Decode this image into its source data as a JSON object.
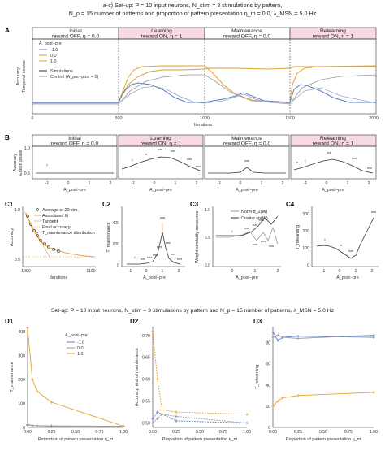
{
  "header_top": {
    "line1": "a-c) Set-up: P = 10 input neurons, N_stim = 3 stimulations by pattern,",
    "line2": "N_p = 15 number of patterns and proportion of pattern presentation η_m = 0.0, λ_MSN = 5.0 Hz"
  },
  "header_bottom": {
    "line1": "Set-up: P = 10 input neurons, N_stim = 3 stimulations by pattern and N_p = 15 number of patterns, λ_MSN = 5.0 Hz"
  },
  "phases": [
    {
      "name": "Initial",
      "cond": "reward OFF, η = 0.0",
      "pink": false
    },
    {
      "name": "Learning",
      "cond": "reward ON, η = 1",
      "pink": true
    },
    {
      "name": "Maintenance",
      "cond": "reward OFF, η = 0.0",
      "pink": false
    },
    {
      "name": "Relearning",
      "cond": "reward ON, η = 1",
      "pink": true
    }
  ],
  "panel_labels": {
    "A": "A",
    "B": "B",
    "C1": "C1",
    "C2": "C2",
    "C3": "C3",
    "C4": "C4",
    "D1": "D1",
    "D2": "D2",
    "D3": "D3"
  },
  "panelA": {
    "ylabel1": "Accuracy",
    "ylabel2": "Temporal course",
    "xlabel": "Iterations",
    "xticks": [
      "0",
      "500",
      "1000",
      "1500",
      "2000"
    ],
    "legend": {
      "title": "A_post−pre",
      "items": [
        "-1.0",
        "0.0",
        "1.0"
      ],
      "sim": "Simulations",
      "control": "Control (A_pre−post = 0)"
    }
  },
  "panelB": {
    "ylabel1": "Accuracy",
    "ylabel2": "End of phase",
    "xlabel": "A_post−pre",
    "xticks": [
      "-1",
      "0",
      "1",
      "2"
    ],
    "yticks": [
      "0.5",
      "1.0"
    ],
    "stars": {
      "learning": [
        "*",
        "***",
        "***",
        "***",
        "***"
      ],
      "maintenance": [
        "***"
      ],
      "relearning": [
        "*",
        "**",
        "***",
        "***"
      ]
    }
  },
  "panelC1": {
    "ylabel": "Accuracy",
    "xlabel": "Iterations",
    "xticks": [
      "1000",
      "1100"
    ],
    "yticks": [
      "0.5",
      "1.0"
    ],
    "legend": [
      "Average of 20 sim.",
      "Associated fit",
      "Tangent",
      "Final accuracy",
      "T_maintenance distribution"
    ]
  },
  "panelC2": {
    "ylabel": "T_maintenance",
    "xlabel": "A_post−pre",
    "xticks": [
      "-1",
      "0",
      "1",
      "2"
    ],
    "yticks": [
      "0",
      "200",
      "400"
    ],
    "stars": [
      "***",
      "***",
      "***",
      "***",
      "***",
      "***",
      "***",
      "***"
    ]
  },
  "panelC3": {
    "ylabel": "Weight similarity measures",
    "xlabel": "A_post−pre",
    "xticks": [
      "0",
      "1",
      "2"
    ],
    "yticks": [
      "0.0",
      "0.5",
      "1.0"
    ],
    "legend": [
      "Norm d_2(W)",
      "Cosine sp(W)"
    ],
    "stars": [
      "***",
      "***",
      "***",
      "***",
      "***",
      "***"
    ]
  },
  "panelC4": {
    "ylabel": "T_relearning",
    "xlabel": "A_post−pre",
    "xticks": [
      "-1",
      "0",
      "1",
      "2"
    ],
    "yticks": [
      "0",
      "100",
      "200",
      "300"
    ],
    "stars": [
      "*",
      "***",
      "***"
    ]
  },
  "panelD1": {
    "ylabel": "T_maintenance",
    "xlabel": "Proportion of pattern presentation η_m",
    "xticks": [
      "0.00",
      "0.25",
      "0.50",
      "0.75",
      "1.00"
    ],
    "yticks": [
      "0",
      "100",
      "200",
      "300",
      "400"
    ],
    "legend_title": "A_post−pre",
    "legend": [
      "-1.0",
      "0.0",
      "1.0"
    ]
  },
  "panelD2": {
    "ylabel": "Accuracy, end of maintenance",
    "xlabel": "Proportion of pattern presentation η_m",
    "xticks": [
      "0.00",
      "0.25",
      "0.50",
      "0.75",
      "1.00"
    ],
    "yticks": [
      "0.50",
      "0.55",
      "0.60",
      "0.65",
      "0.70"
    ]
  },
  "panelD3": {
    "ylabel": "T_relearning",
    "xlabel": "Proportion of pattern presentation η_m",
    "xticks": [
      "0.00",
      "0.25",
      "0.50",
      "0.75",
      "1.00"
    ],
    "yticks": [
      "0",
      "20",
      "40",
      "60",
      "80"
    ]
  },
  "colors": {
    "blue": "#5b7fc4",
    "orange": "#e8a030",
    "gold": "#d9a23a",
    "gray": "#999999",
    "pink": "#f6d9e3",
    "dark": "#333333"
  },
  "chart_data": [
    {
      "type": "line",
      "panel": "D1",
      "x": [
        0.0,
        0.05,
        0.1,
        0.25,
        1.0
      ],
      "series": [
        {
          "name": "-1.0",
          "values": [
            10,
            8,
            7,
            6,
            5
          ]
        },
        {
          "name": "0.0",
          "values": [
            12,
            8,
            6,
            5,
            5
          ]
        },
        {
          "name": "1.0",
          "values": [
            415,
            200,
            150,
            105,
            5
          ]
        }
      ],
      "xlim": [
        0,
        1
      ],
      "ylim": [
        0,
        420
      ]
    },
    {
      "type": "line",
      "panel": "D2",
      "x": [
        0.0,
        0.05,
        0.1,
        0.25,
        1.0
      ],
      "series": [
        {
          "name": "-1.0",
          "values": [
            0.51,
            0.525,
            0.52,
            0.505,
            0.5
          ]
        },
        {
          "name": "0.0",
          "values": [
            0.5,
            0.51,
            0.52,
            0.515,
            0.5
          ]
        },
        {
          "name": "1.0",
          "values": [
            0.71,
            0.6,
            0.53,
            0.525,
            0.52
          ]
        }
      ],
      "xlim": [
        0,
        1
      ],
      "ylim": [
        0.49,
        0.72
      ]
    },
    {
      "type": "line",
      "panel": "D3",
      "x": [
        0.0,
        0.05,
        0.1,
        0.25,
        1.0
      ],
      "series": [
        {
          "name": "-1.0",
          "values": [
            90,
            82,
            85,
            86,
            85
          ]
        },
        {
          "name": "0.0",
          "values": [
            85,
            87,
            85,
            84,
            87
          ]
        },
        {
          "name": "1.0",
          "values": [
            20,
            25,
            28,
            30,
            33
          ]
        }
      ],
      "xlim": [
        0,
        1
      ],
      "ylim": [
        0,
        95
      ]
    }
  ]
}
